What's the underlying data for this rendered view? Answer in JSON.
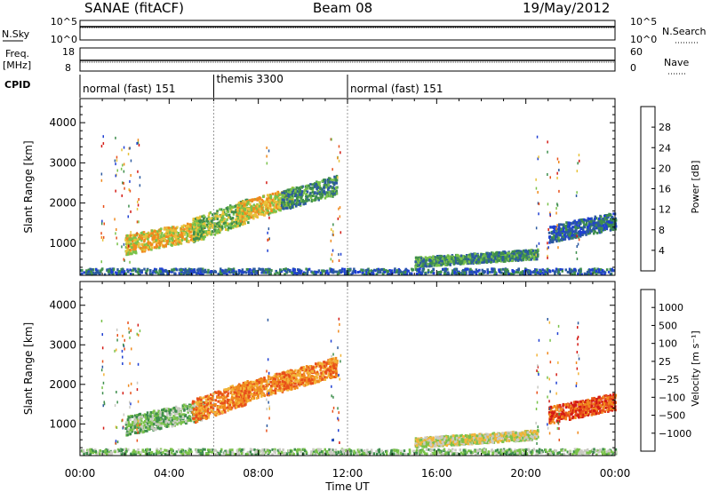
{
  "header": {
    "station": "SANAE (fitACF)",
    "beam": "Beam 08",
    "date": "19/May/2012"
  },
  "colors": {
    "power": [
      "#1f3fd2",
      "#2c5aa0",
      "#3e8e4c",
      "#79c24a",
      "#e8c23a",
      "#f08a1e",
      "#e8501a",
      "#d41a14"
    ],
    "velocity": [
      "#d41a14",
      "#e8501a",
      "#f08a1e",
      "#f2b53a",
      "#c9c9c2",
      "#79c24a",
      "#3e8e4c",
      "#2c5aa0",
      "#1f3fd2"
    ]
  },
  "chart_data": [
    {
      "panel": "noise-sky-search",
      "type": "line",
      "left_label": "N.Sky",
      "right_label": "N.Search",
      "left_ticks": [
        "10^5",
        "10^0"
      ],
      "right_ticks": [
        "10^5",
        "10^0"
      ]
    },
    {
      "panel": "frequency-nave",
      "type": "line",
      "left_label": "Freq.",
      "left_unit": "[MHz]",
      "right_label": "Nave",
      "left_ticks": [
        "18",
        "8"
      ],
      "right_ticks": [
        "60",
        "0"
      ]
    },
    {
      "panel": "cpid",
      "type": "table",
      "label": "CPID",
      "segments": [
        {
          "start_h": 0,
          "end_h": 6,
          "name": "normal (fast) 151"
        },
        {
          "start_h": 6,
          "end_h": 12,
          "name": "themis 3300"
        },
        {
          "start_h": 12,
          "end_h": 24,
          "name": "normal (fast) 151"
        }
      ]
    },
    {
      "panel": "power",
      "type": "heatmap",
      "ylabel": "Slant Range [km]",
      "yticks": [
        1000,
        2000,
        3000,
        4000
      ],
      "ylim": [
        200,
        4600
      ],
      "colorbar_label": "Power [dB]",
      "colorbar_ticks": [
        "4",
        "8",
        "12",
        "16",
        "20",
        "24",
        "28"
      ],
      "scatter_regions": [
        {
          "t_range_h": [
            2.0,
            5.5
          ],
          "range_km": [
            700,
            1500
          ],
          "level": 4
        },
        {
          "t_range_h": [
            5.0,
            7.5
          ],
          "range_km": [
            1000,
            2000
          ],
          "level": 3
        },
        {
          "t_range_h": [
            7.0,
            9.5
          ],
          "range_km": [
            1500,
            2300
          ],
          "level": 4
        },
        {
          "t_range_h": [
            9.0,
            11.5
          ],
          "range_km": [
            1800,
            2600
          ],
          "level": 2
        },
        {
          "t_range_h": [
            15.0,
            20.5
          ],
          "range_km": [
            400,
            800
          ],
          "level": 2
        },
        {
          "t_range_h": [
            21.0,
            24.0
          ],
          "range_km": [
            1000,
            1700
          ],
          "level": 1
        },
        {
          "t_range_h": [
            0.0,
            24.0
          ],
          "range_km": [
            220,
            360
          ],
          "level": 1
        }
      ]
    },
    {
      "panel": "velocity",
      "type": "heatmap",
      "ylabel": "Slant Range [km]",
      "yticks": [
        1000,
        2000,
        3000,
        4000
      ],
      "ylim": [
        200,
        4600
      ],
      "xlabel": "Time UT",
      "xticks": [
        "00:00",
        "04:00",
        "08:00",
        "12:00",
        "16:00",
        "20:00",
        "00:00"
      ],
      "xlim_h": [
        0,
        24
      ],
      "colorbar_label": "Velocity [m s⁻¹]",
      "colorbar_ticks": [
        "1000",
        "500",
        "100",
        "25",
        "−25",
        "−100",
        "−500",
        "−1000"
      ],
      "scatter_regions": [
        {
          "t_range_h": [
            2.0,
            5.5
          ],
          "range_km": [
            700,
            1500
          ],
          "level": 5
        },
        {
          "t_range_h": [
            5.0,
            7.5
          ],
          "range_km": [
            1000,
            2000
          ],
          "level": 2
        },
        {
          "t_range_h": [
            7.0,
            9.5
          ],
          "range_km": [
            1500,
            2300
          ],
          "level": 2
        },
        {
          "t_range_h": [
            9.0,
            11.5
          ],
          "range_km": [
            1800,
            2600
          ],
          "level": 2
        },
        {
          "t_range_h": [
            15.0,
            20.5
          ],
          "range_km": [
            400,
            800
          ],
          "level": 4
        },
        {
          "t_range_h": [
            21.0,
            24.0
          ],
          "range_km": [
            1000,
            1700
          ],
          "level": 1
        },
        {
          "t_range_h": [
            0.0,
            24.0
          ],
          "range_km": [
            220,
            360
          ],
          "level": 5
        }
      ]
    }
  ]
}
